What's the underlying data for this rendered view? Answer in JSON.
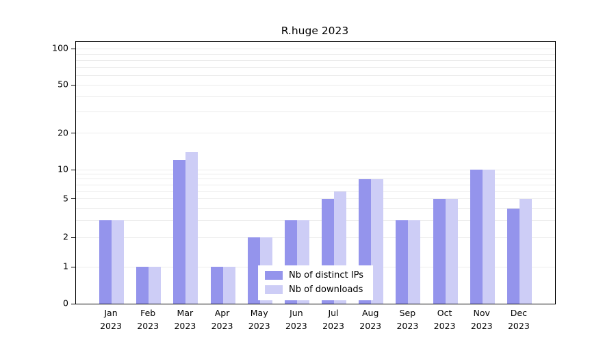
{
  "chart_data": {
    "type": "bar",
    "title": "R.huge 2023",
    "categories": [
      "Jan",
      "Feb",
      "Mar",
      "Apr",
      "May",
      "Jun",
      "Jul",
      "Aug",
      "Sep",
      "Oct",
      "Nov",
      "Dec"
    ],
    "year": "2023",
    "series": [
      {
        "name": "Nb of distinct IPs",
        "color": "#9494ec",
        "values": [
          3,
          1,
          12,
          1,
          2,
          3,
          5,
          8,
          3,
          5,
          10,
          4
        ]
      },
      {
        "name": "Nb of downloads",
        "color": "#cdcdf6",
        "values": [
          3,
          1,
          14,
          1,
          2,
          3,
          6,
          8,
          3,
          5,
          10,
          5
        ]
      }
    ],
    "y_axis": {
      "scale": "log",
      "ticks": [
        0,
        1,
        2,
        5,
        10,
        20,
        50,
        100
      ],
      "gridlines": [
        1,
        2,
        3,
        4,
        5,
        6,
        7,
        8,
        9,
        10,
        20,
        30,
        40,
        50,
        60,
        70,
        80,
        90,
        100
      ],
      "range": [
        0,
        100
      ]
    },
    "legend": {
      "position": "bottom-center",
      "entries": [
        "Nb of distinct IPs",
        "Nb of downloads"
      ]
    }
  },
  "colors": {
    "grid": "#ebebeb",
    "axis": "#000000",
    "background": "#ffffff"
  }
}
